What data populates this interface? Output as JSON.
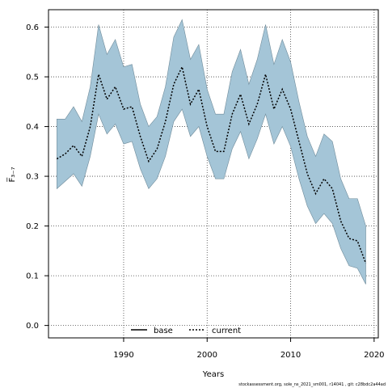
{
  "chart_data": {
    "type": "area",
    "xlabel": "Years",
    "ylabel": "F̅₃₋₇",
    "xlim": [
      1981,
      2020.5
    ],
    "ylim": [
      -0.025,
      0.635
    ],
    "xticks": [
      1990,
      2000,
      2010,
      2020
    ],
    "yticks": [
      0.0,
      0.1,
      0.2,
      0.3,
      0.4,
      0.5,
      0.6
    ],
    "ytick_labels": [
      "0.0",
      "0.1",
      "0.2",
      "0.3",
      "0.4",
      "0.5",
      "0.6"
    ],
    "grid": true,
    "legend_position": "bottom-center",
    "legend": [
      {
        "name": "base",
        "style": "solid"
      },
      {
        "name": "current",
        "style": "dotted"
      }
    ],
    "colors": {
      "band": "#a4c5d7",
      "band_edge": "#6f8b9a",
      "line": "#000000",
      "grid": "#444444"
    },
    "x": [
      1982,
      1983,
      1984,
      1985,
      1986,
      1987,
      1988,
      1989,
      1990,
      1991,
      1992,
      1993,
      1994,
      1995,
      1996,
      1997,
      1998,
      1999,
      2000,
      2001,
      2002,
      2003,
      2004,
      2005,
      2006,
      2007,
      2008,
      2009,
      2010,
      2011,
      2012,
      2013,
      2014,
      2015,
      2016,
      2017,
      2018,
      2019
    ],
    "series": [
      {
        "name": "current",
        "values": [
          0.335,
          0.345,
          0.362,
          0.34,
          0.4,
          0.505,
          0.455,
          0.48,
          0.435,
          0.44,
          0.38,
          0.33,
          0.355,
          0.41,
          0.485,
          0.52,
          0.445,
          0.475,
          0.4,
          0.35,
          0.35,
          0.425,
          0.465,
          0.405,
          0.445,
          0.505,
          0.435,
          0.475,
          0.435,
          0.37,
          0.305,
          0.265,
          0.295,
          0.275,
          0.21,
          0.175,
          0.17,
          0.125
        ]
      }
    ],
    "band": {
      "upper": [
        0.415,
        0.415,
        0.44,
        0.41,
        0.48,
        0.605,
        0.545,
        0.575,
        0.52,
        0.525,
        0.445,
        0.4,
        0.42,
        0.48,
        0.58,
        0.615,
        0.535,
        0.565,
        0.475,
        0.425,
        0.425,
        0.51,
        0.555,
        0.485,
        0.535,
        0.605,
        0.525,
        0.575,
        0.53,
        0.45,
        0.38,
        0.34,
        0.385,
        0.37,
        0.295,
        0.255,
        0.255,
        0.2
      ],
      "lower": [
        0.275,
        0.29,
        0.305,
        0.28,
        0.34,
        0.425,
        0.385,
        0.405,
        0.365,
        0.37,
        0.315,
        0.275,
        0.295,
        0.34,
        0.41,
        0.435,
        0.38,
        0.4,
        0.34,
        0.295,
        0.295,
        0.355,
        0.39,
        0.335,
        0.375,
        0.425,
        0.365,
        0.4,
        0.36,
        0.295,
        0.24,
        0.205,
        0.225,
        0.205,
        0.155,
        0.12,
        0.115,
        0.083
      ]
    },
    "footnote": "stockassessment.org,  sole_ns_2021_sm001,  r14041 ,  git: c28bdc2a44ad"
  }
}
